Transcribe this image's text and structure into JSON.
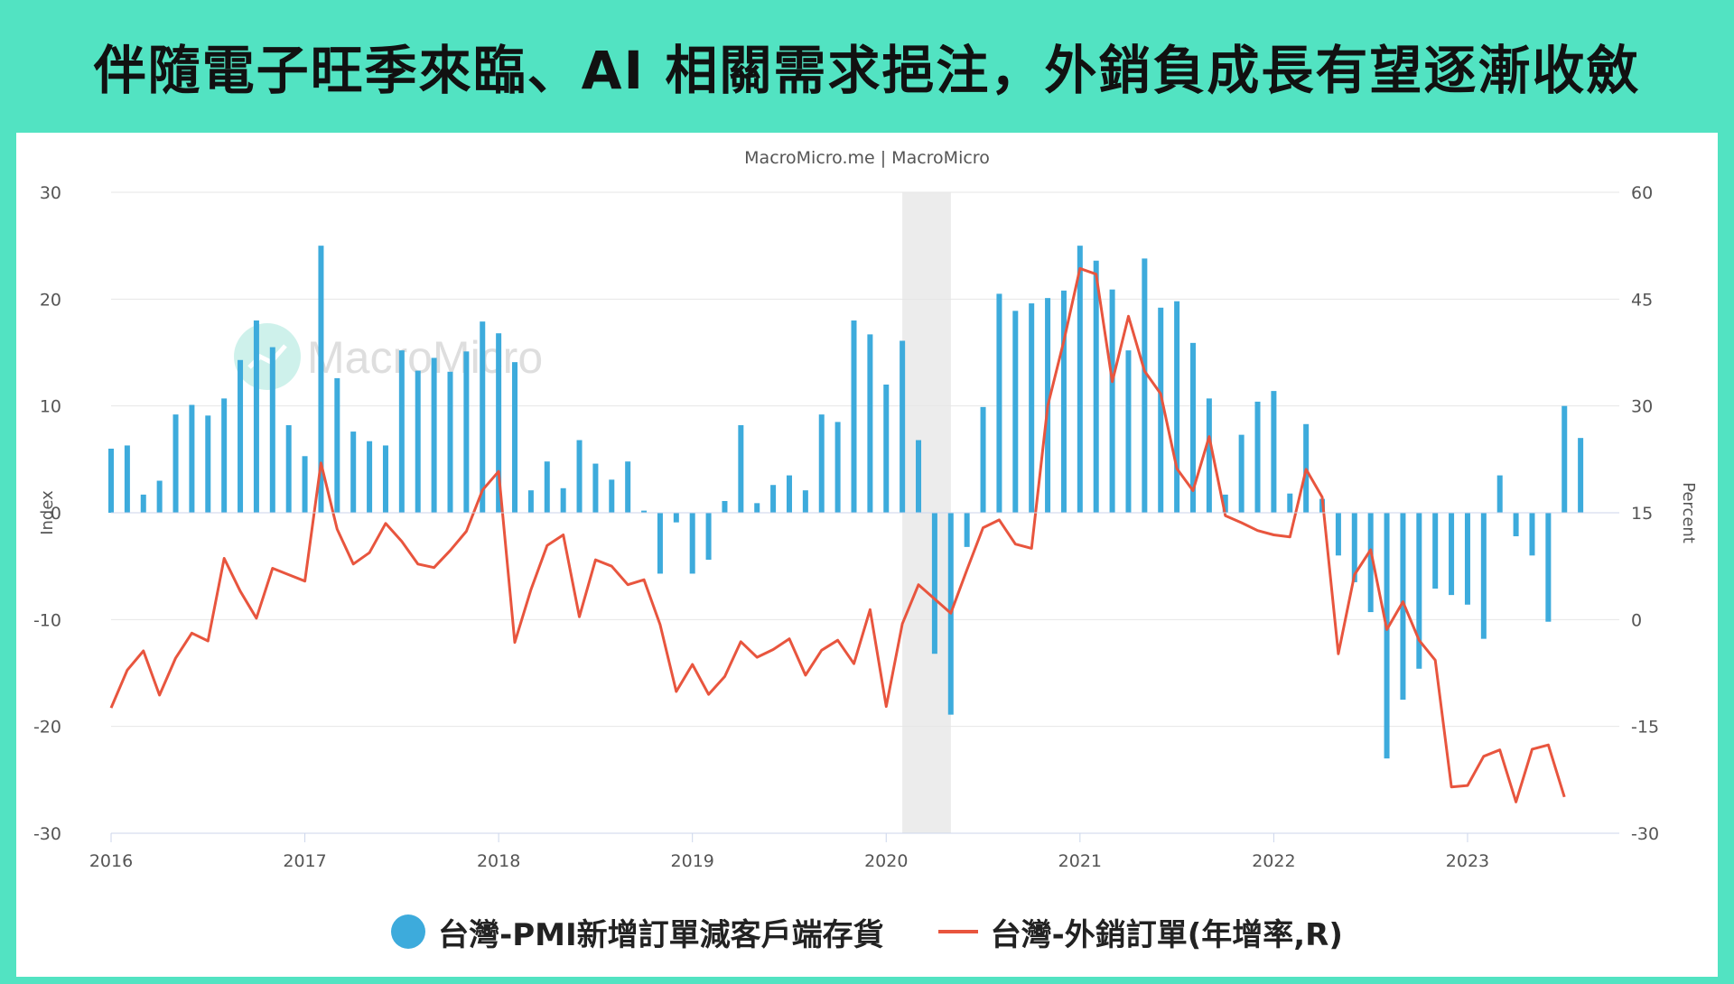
{
  "title": "伴隨電子旺季來臨、AI 相關需求挹注，外銷負成長有望逐漸收斂",
  "source": "MacroMicro.me | MacroMicro",
  "watermark": "MacroMicro",
  "colors": {
    "background": "#52e3c2",
    "bar": "#3dabdc",
    "line": "#e8553e",
    "recession_band": "#ececec"
  },
  "chart_data": {
    "type": "bar+line",
    "left_axis": {
      "label": "Index",
      "ylim": [
        -30,
        30
      ],
      "ticks": [
        "30",
        "20",
        "10",
        "0",
        "-10",
        "-20",
        "-30"
      ]
    },
    "right_axis": {
      "label": "Percent",
      "ylim": [
        -30,
        60
      ],
      "ticks": [
        "60",
        "45",
        "30",
        "15",
        "0",
        "-15",
        "-30"
      ]
    },
    "x_ticks": [
      "2016",
      "2017",
      "2018",
      "2019",
      "2020",
      "2021",
      "2022",
      "2023"
    ],
    "x_range": [
      "2016-01",
      "2023-09"
    ],
    "shaded_period": [
      "2020-02",
      "2020-04"
    ],
    "series": [
      {
        "name": "台灣-PMI新增訂單減客戶端存貨",
        "type": "bar",
        "axis": "left",
        "start": "2016-01",
        "values": [
          6.0,
          6.3,
          1.7,
          3.0,
          9.2,
          10.1,
          9.1,
          10.7,
          14.3,
          18.0,
          15.5,
          8.2,
          5.3,
          25.0,
          12.6,
          7.6,
          6.7,
          6.3,
          15.2,
          13.3,
          14.5,
          13.2,
          15.1,
          17.9,
          16.8,
          14.1,
          2.1,
          4.8,
          2.3,
          6.8,
          4.6,
          3.1,
          4.8,
          0.2,
          -5.7,
          -0.9,
          -5.7,
          -4.4,
          1.1,
          8.2,
          0.9,
          2.6,
          3.5,
          2.1,
          9.2,
          8.5,
          18.0,
          16.7,
          12.0,
          16.1,
          6.8,
          -13.2,
          -18.9,
          -3.2,
          9.9,
          20.5,
          18.9,
          19.6,
          20.1,
          20.8,
          25.0,
          23.6,
          20.9,
          15.2,
          23.8,
          19.2,
          19.8,
          15.9,
          10.7,
          1.7,
          7.3,
          10.4,
          11.4,
          1.8,
          8.3,
          1.3,
          -4.0,
          -6.5,
          -9.3,
          -23.0,
          -17.5,
          -14.6,
          -7.1,
          -7.7,
          -8.6,
          -11.8,
          3.5,
          -2.2,
          -4.0,
          -10.2,
          10.0,
          7.0
        ]
      },
      {
        "name": "台灣-外銷訂單(年增率,R)",
        "type": "line",
        "axis": "right",
        "start": "2016-01",
        "values": [
          -12.4,
          -7.1,
          -4.4,
          -10.6,
          -5.4,
          -1.9,
          -3.0,
          8.6,
          4.0,
          0.2,
          7.2,
          6.3,
          5.4,
          22.0,
          12.7,
          7.8,
          9.4,
          13.5,
          11.0,
          7.8,
          7.3,
          9.7,
          12.4,
          18.2,
          20.8,
          -3.2,
          4.2,
          10.4,
          11.9,
          0.4,
          8.4,
          7.5,
          4.9,
          5.6,
          -0.7,
          -10.1,
          -6.3,
          -10.5,
          -8.0,
          -3.1,
          -5.3,
          -4.2,
          -2.7,
          -7.8,
          -4.3,
          -2.9,
          -6.2,
          1.4,
          -12.2,
          -0.6,
          4.9,
          2.9,
          0.9,
          7.0,
          12.9,
          14.0,
          10.6,
          10.0,
          30.0,
          39.1,
          49.3,
          48.5,
          33.4,
          42.6,
          34.9,
          31.7,
          21.2,
          18.1,
          25.7,
          14.6,
          13.6,
          12.5,
          11.9,
          11.6,
          21.1,
          17.2,
          -4.8,
          6.3,
          9.8,
          -1.4,
          2.5,
          -2.9,
          -5.7,
          -23.5,
          -23.3,
          -19.2,
          -18.3,
          -25.6,
          -18.2,
          -17.6,
          -24.9
        ]
      }
    ]
  },
  "legend": {
    "bar_label": "台灣-PMI新增訂單減客戶端存貨",
    "line_label": "台灣-外銷訂單(年增率,R)"
  }
}
